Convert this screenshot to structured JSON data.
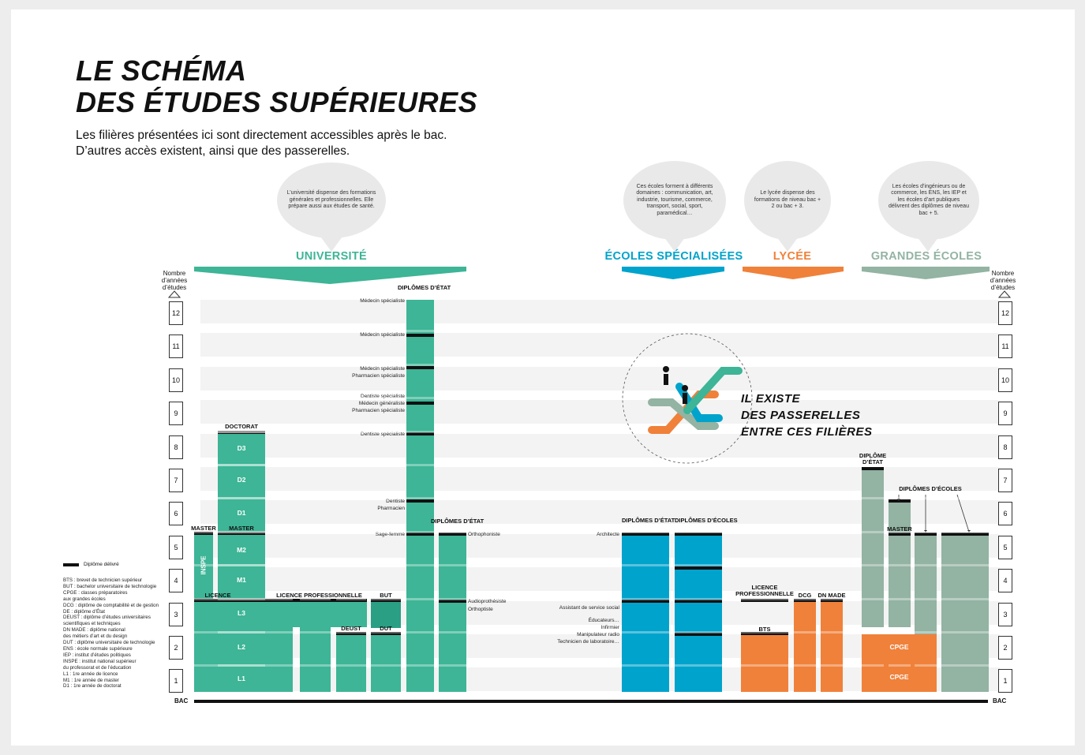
{
  "title_line1": "LE SCHÉMA",
  "title_line2": "DES ÉTUDES SUPÉRIEURES",
  "subtitle_line1": "Les filières présentées ici sont directement accessibles après le bac.",
  "subtitle_line2": "D’autres accès existent, ainsi que des passerelles.",
  "colors": {
    "universite": "#3db596",
    "ecoles_specialisees": "#00a3cc",
    "lycee": "#f0813a",
    "grandes_ecoles": "#93b3a3",
    "but_dark": "#2a9f84"
  },
  "bubbles": {
    "universite": "L’université dispense des formations générales et professionnelles. Elle prépare aussi aux études de santé.",
    "ecoles": "Ces écoles forment à différents domaines : communication, art, industrie, tourisme, commerce, transport, social, sport, paramédical…",
    "lycee": "Le lycée dispense des formations de niveau bac + 2 ou bac + 3.",
    "grandes_ecoles": "Les écoles d’ingénieurs ou de commerce, les ENS, les IEP et les écoles d’art publiques délivrent des diplômes de niveau bac + 5."
  },
  "categories": {
    "universite": "UNIVERSITÉ",
    "ecoles": "ÉCOLES SPÉCIALISÉES",
    "lycee": "LYCÉE",
    "grandes_ecoles": "GRANDES ÉCOLES"
  },
  "axis": {
    "label": "Nombre d’années d’études",
    "years": [
      "12",
      "11",
      "10",
      "9",
      "8",
      "7",
      "6",
      "5",
      "4",
      "3",
      "2",
      "1"
    ],
    "bac": "BAC"
  },
  "blocks": {
    "doctorat": "DOCTORAT",
    "d3": "D3",
    "d2": "D2",
    "d1": "D1",
    "master_left": "MASTER",
    "master": "MASTER",
    "m2": "M2",
    "m1": "M1",
    "inspe": "INSPE",
    "licence": "LICENCE",
    "l3": "L3",
    "l2": "L2",
    "l1": "L1",
    "licence_pro": "LICENCE PROFESSIONNELLE",
    "but": "BUT",
    "deust": "DEUST",
    "dut": "DUT",
    "diplomes_etat_1": "DIPLÔMES D’ÉTAT",
    "diplomes_etat_2": "DIPLÔMES D’ÉTAT",
    "diplomes_etat_3": "DIPLÔMES D’ÉTAT",
    "diplomes_ecoles_1": "DIPLÔMES D’ÉCOLES",
    "licence_pro_lycee": "LICENCE PROFESSIONNELLE",
    "dcg": "DCG",
    "dn_made": "DN MADE",
    "bts": "BTS",
    "diplome_etat_ge": "DIPLÔME D’ÉTAT",
    "diplomes_ecoles_ge": "DIPLÔMES D’ÉCOLES",
    "master_ge": "MASTER",
    "cpge1": "CPGE",
    "cpge2": "CPGE"
  },
  "health_labels": {
    "medecin12": "Médecin spécialiste",
    "medecin11": "Médecin spécialiste",
    "medecin10": "Médecin spécialiste",
    "pharma10": "Pharmacien spécialiste",
    "dentiste9": "Dentiste spécialiste",
    "generaliste9": "Médecin généraliste",
    "pharma9": "Pharmacien spécialiste",
    "dentiste8": "Dentiste spécialiste",
    "dentiste6": "Dentiste",
    "pharmacien6": "Pharmacien",
    "sagefemme": "Sage-femme",
    "orthophoniste": "Orthophoniste",
    "audio": "Audioprothésiste",
    "orthoptiste": "Orthoptiste"
  },
  "school_labels": {
    "architecte": "Architecte",
    "assistant": "Assistant de service social",
    "educateurs": "Éducateurs…",
    "infirmier": "Infirmier",
    "manipulateur": "Manipulateur radio",
    "technicien": "Technicien de laboratoire…"
  },
  "passerelles": {
    "line1": "IL EXISTE",
    "line2": "DES PASSERELLES",
    "line3": "ENTRE CES FILIÈRES"
  },
  "legend": {
    "delivered": "Diplôme délivré",
    "items": [
      "BTS : brevet de technicien supérieur",
      "BUT : bachelor universitaire de technologie",
      "CPGE : classes préparatoires",
      "aux grandes écoles",
      "DCG : diplôme de comptabilité et de gestion",
      "DE : diplôme d’État",
      "DEUST : diplôme d’études universitaires",
      "scientifiques et techniques",
      "DN MADE : diplôme national",
      "des métiers d’art et du design",
      "DUT : diplôme universitaire de technologie",
      "ENS : école normale supérieure",
      "IEP : institut d’études politiques",
      "INSPE : institut national supérieur",
      "du professorat et de l’éducation",
      "L1 : 1re année de licence",
      "M1 : 1re année de master",
      "D1 : 1re année de doctorat"
    ]
  }
}
